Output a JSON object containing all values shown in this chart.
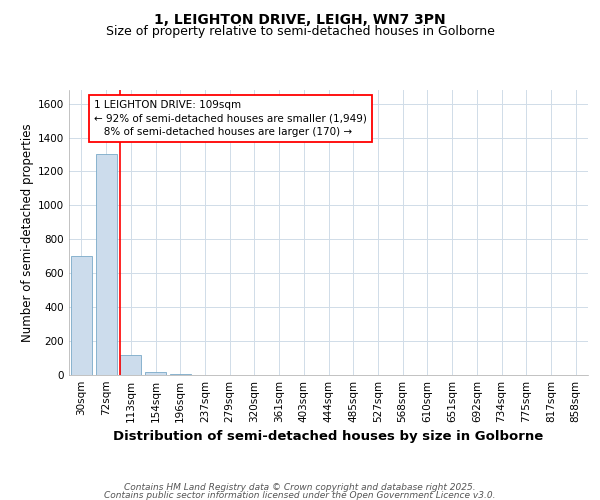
{
  "title_line1": "1, LEIGHTON DRIVE, LEIGH, WN7 3PN",
  "title_line2": "Size of property relative to semi-detached houses in Golborne",
  "xlabel": "Distribution of semi-detached houses by size in Golborne",
  "ylabel": "Number of semi-detached properties",
  "footnote_line1": "Contains HM Land Registry data © Crown copyright and database right 2025.",
  "footnote_line2": "Contains public sector information licensed under the Open Government Licence v3.0.",
  "categories": [
    "30sqm",
    "72sqm",
    "113sqm",
    "154sqm",
    "196sqm",
    "237sqm",
    "279sqm",
    "320sqm",
    "361sqm",
    "403sqm",
    "444sqm",
    "485sqm",
    "527sqm",
    "568sqm",
    "610sqm",
    "651sqm",
    "692sqm",
    "734sqm",
    "775sqm",
    "817sqm",
    "858sqm"
  ],
  "values": [
    700,
    1300,
    120,
    15,
    5,
    0,
    0,
    0,
    0,
    0,
    0,
    0,
    0,
    0,
    0,
    0,
    0,
    0,
    0,
    0,
    0
  ],
  "bar_color": "#ccdcec",
  "bar_edge_color": "#7aaac8",
  "red_line_index": 2,
  "annotation_line1": "1 LEIGHTON DRIVE: 109sqm",
  "annotation_line2": "← 92% of semi-detached houses are smaller (1,949)",
  "annotation_line3": "8% of semi-detached houses are larger (170) →",
  "ylim": [
    0,
    1680
  ],
  "yticks": [
    0,
    200,
    400,
    600,
    800,
    1000,
    1200,
    1400,
    1600
  ],
  "bg_color": "#ffffff",
  "plot_bg_color": "#ffffff",
  "grid_color": "#d0dce8",
  "title_fontsize": 10,
  "subtitle_fontsize": 9,
  "axis_label_fontsize": 8.5,
  "tick_fontsize": 7.5,
  "annotation_fontsize": 7.5,
  "footnote_fontsize": 6.5
}
